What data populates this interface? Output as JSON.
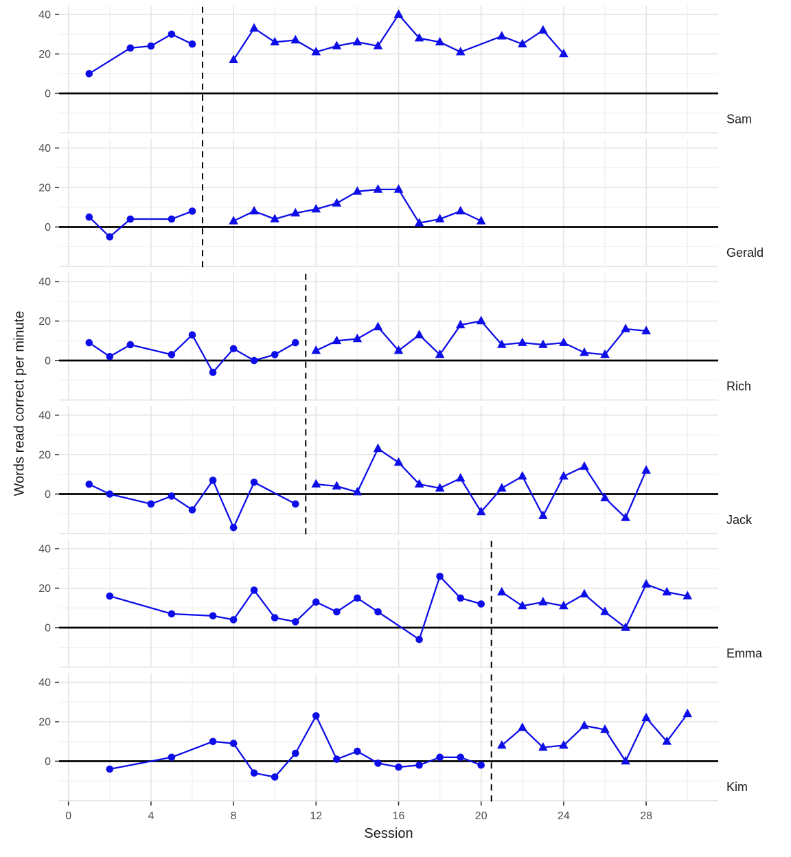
{
  "figure": {
    "xlabel": "Session",
    "ylabel": "Words read correct per minute",
    "x_ticks": [
      0,
      4,
      8,
      12,
      16,
      20,
      24,
      28
    ],
    "y_ticks": [
      0,
      20,
      40
    ],
    "colors": {
      "series": "#0d0de8",
      "zero_line": "#000000",
      "phase_line": "#000000",
      "grid_major": "#e3e3e3",
      "grid_minor": "#f0f0f0",
      "axis_text": "#4d4d4d",
      "tick_mark": "#333333",
      "label_text": "#1a1a1a"
    }
  },
  "chart_data": {
    "type": "line",
    "title": "",
    "xlabel": "Session",
    "ylabel": "Words read correct per minute",
    "xlim": [
      -0.46,
      31.5
    ],
    "ylim": [
      -20.5,
      44.7
    ],
    "grid": true,
    "legend_position": "none",
    "facet_labels_position": "right",
    "panels": [
      {
        "label": "Sam",
        "phase_line_x": 6.5,
        "series": [
          {
            "name": "baseline",
            "marker": "circle",
            "x": [
              1,
              3,
              4,
              5,
              6
            ],
            "y": [
              10,
              23,
              24,
              30,
              25
            ]
          },
          {
            "name": "intervention",
            "marker": "triangle",
            "x": [
              8,
              9,
              10,
              11,
              12,
              13,
              14,
              15,
              16,
              17,
              18,
              19,
              21,
              22,
              23,
              24
            ],
            "y": [
              17,
              33,
              26,
              27,
              21,
              24,
              26,
              24,
              40,
              28,
              26,
              21,
              29,
              25,
              32,
              20
            ]
          }
        ]
      },
      {
        "label": "Gerald",
        "phase_line_x": 6.5,
        "series": [
          {
            "name": "baseline",
            "marker": "circle",
            "x": [
              1,
              2,
              3,
              5,
              6
            ],
            "y": [
              5,
              -5,
              4,
              4,
              8
            ]
          },
          {
            "name": "intervention",
            "marker": "triangle",
            "x": [
              8,
              9,
              10,
              11,
              12,
              13,
              14,
              15,
              16,
              17,
              18,
              19,
              20
            ],
            "y": [
              3,
              8,
              4,
              7,
              9,
              12,
              18,
              19,
              19,
              2,
              4,
              8,
              3
            ]
          }
        ]
      },
      {
        "label": "Rich",
        "phase_line_x": 11.5,
        "series": [
          {
            "name": "baseline",
            "marker": "circle",
            "x": [
              1,
              2,
              3,
              5,
              6,
              7,
              8,
              9,
              10,
              11
            ],
            "y": [
              9,
              2,
              8,
              3,
              13,
              -6,
              6,
              0,
              3,
              9
            ]
          },
          {
            "name": "intervention",
            "marker": "triangle",
            "x": [
              12,
              13,
              14,
              15,
              16,
              17,
              18,
              19,
              20,
              21,
              22,
              23,
              24,
              25,
              26,
              27,
              28
            ],
            "y": [
              5,
              10,
              11,
              17,
              5,
              13,
              3,
              18,
              20,
              8,
              9,
              8,
              9,
              4,
              3,
              16,
              15
            ]
          }
        ]
      },
      {
        "label": "Jack",
        "phase_line_x": 11.5,
        "series": [
          {
            "name": "baseline",
            "marker": "circle",
            "x": [
              1,
              2,
              4,
              5,
              6,
              7,
              8,
              9,
              11
            ],
            "y": [
              5,
              0,
              -5,
              -1,
              -8,
              7,
              -17,
              6,
              -5
            ]
          },
          {
            "name": "intervention",
            "marker": "triangle",
            "x": [
              12,
              13,
              14,
              15,
              16,
              17,
              18,
              19,
              20,
              21,
              22,
              23,
              24,
              25,
              26,
              27,
              28
            ],
            "y": [
              5,
              4,
              1,
              23,
              16,
              5,
              3,
              8,
              -9,
              3,
              9,
              -11,
              9,
              14,
              -2,
              -12,
              12
            ]
          }
        ]
      },
      {
        "label": "Emma",
        "phase_line_x": 20.5,
        "series": [
          {
            "name": "baseline",
            "marker": "circle",
            "x": [
              2,
              5,
              7,
              8,
              9,
              10,
              11,
              12,
              13,
              14,
              15,
              17,
              18,
              19,
              20
            ],
            "y": [
              16,
              7,
              6,
              4,
              19,
              5,
              3,
              13,
              8,
              15,
              8,
              -6,
              26,
              15,
              12
            ]
          },
          {
            "name": "intervention",
            "marker": "triangle",
            "x": [
              21,
              22,
              23,
              24,
              25,
              26,
              27,
              28,
              29,
              30
            ],
            "y": [
              18,
              11,
              13,
              11,
              17,
              8,
              0,
              22,
              18,
              16
            ]
          }
        ]
      },
      {
        "label": "Kim",
        "phase_line_x": 20.5,
        "series": [
          {
            "name": "baseline",
            "marker": "circle",
            "x": [
              2,
              5,
              7,
              8,
              9,
              10,
              11,
              12,
              13,
              14,
              15,
              16,
              17,
              18,
              19,
              20
            ],
            "y": [
              -4,
              2,
              10,
              9,
              -6,
              -8,
              4,
              23,
              1,
              5,
              -1,
              -3,
              -2,
              2,
              2,
              -2
            ]
          },
          {
            "name": "intervention",
            "marker": "triangle",
            "x": [
              21,
              22,
              23,
              24,
              25,
              26,
              27,
              28,
              29,
              30
            ],
            "y": [
              8,
              17,
              7,
              8,
              18,
              16,
              0,
              22,
              10,
              24
            ]
          }
        ]
      }
    ]
  }
}
